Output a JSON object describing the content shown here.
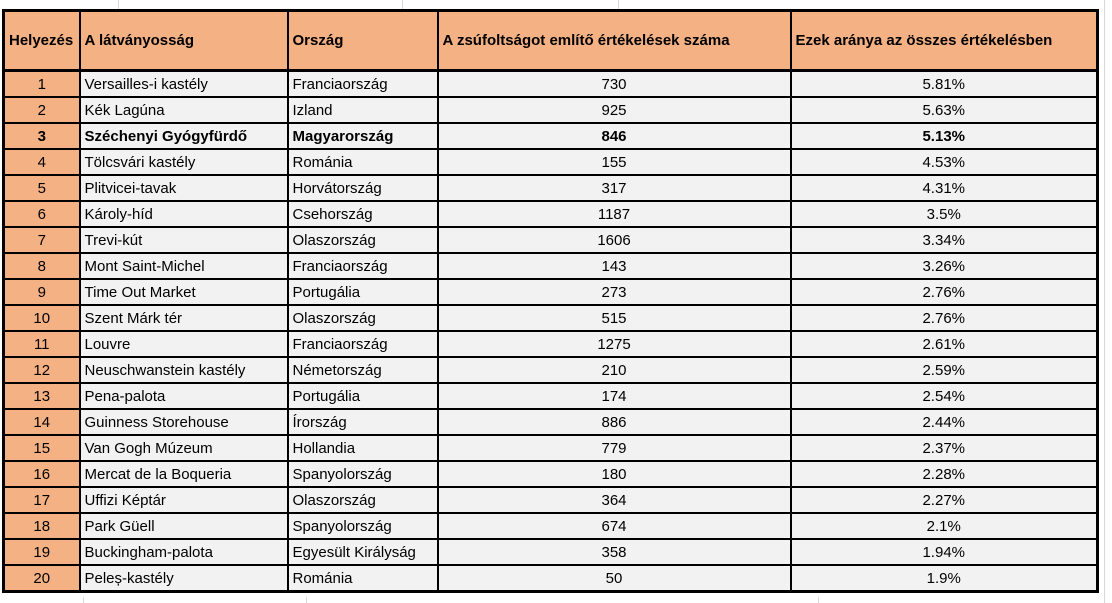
{
  "colors": {
    "header_bg": "#F4B183",
    "rank_col_bg": "#F4B183",
    "row_bg": "#F2F2F2",
    "table_border": "#000000",
    "gridline": "#D8D8D8"
  },
  "table": {
    "columns": [
      {
        "key": "rank",
        "label": "Helyezés"
      },
      {
        "key": "attraction",
        "label": "A látványosság"
      },
      {
        "key": "country",
        "label": "Ország"
      },
      {
        "key": "mentions",
        "label": "A zsúfoltságot említő értékelések száma"
      },
      {
        "key": "share",
        "label": "Ezek aránya az összes értékelésben"
      }
    ],
    "rows": [
      {
        "rank": "1",
        "attraction": "Versailles-i kastély",
        "country": "Franciaország",
        "mentions": "730",
        "share": "5.81%",
        "bold": false
      },
      {
        "rank": "2",
        "attraction": "Kék Lagúna",
        "country": "Izland",
        "mentions": "925",
        "share": "5.63%",
        "bold": false
      },
      {
        "rank": "3",
        "attraction": "Széchenyi Gyógyfürdő",
        "country": "Magyarország",
        "mentions": "846",
        "share": "5.13%",
        "bold": true
      },
      {
        "rank": "4",
        "attraction": "Tölcsvári kastély",
        "country": "Románia",
        "mentions": "155",
        "share": "4.53%",
        "bold": false
      },
      {
        "rank": "5",
        "attraction": "Plitvicei-tavak",
        "country": "Horvátország",
        "mentions": "317",
        "share": "4.31%",
        "bold": false
      },
      {
        "rank": "6",
        "attraction": "Károly-híd",
        "country": "Csehország",
        "mentions": "1187",
        "share": "3.5%",
        "bold": false
      },
      {
        "rank": "7",
        "attraction": "Trevi-kút",
        "country": "Olaszország",
        "mentions": "1606",
        "share": "3.34%",
        "bold": false
      },
      {
        "rank": "8",
        "attraction": "Mont Saint-Michel",
        "country": "Franciaország",
        "mentions": "143",
        "share": "3.26%",
        "bold": false
      },
      {
        "rank": "9",
        "attraction": "Time Out Market",
        "country": "Portugália",
        "mentions": "273",
        "share": "2.76%",
        "bold": false
      },
      {
        "rank": "10",
        "attraction": "Szent Márk tér",
        "country": "Olaszország",
        "mentions": "515",
        "share": "2.76%",
        "bold": false
      },
      {
        "rank": "11",
        "attraction": "Louvre",
        "country": "Franciaország",
        "mentions": "1275",
        "share": "2.61%",
        "bold": false
      },
      {
        "rank": "12",
        "attraction": "Neuschwanstein kastély",
        "country": "Németország",
        "mentions": "210",
        "share": "2.59%",
        "bold": false
      },
      {
        "rank": "13",
        "attraction": "Pena-palota",
        "country": "Portugália",
        "mentions": "174",
        "share": "2.54%",
        "bold": false
      },
      {
        "rank": "14",
        "attraction": "Guinness Storehouse",
        "country": "Írország",
        "mentions": "886",
        "share": "2.44%",
        "bold": false
      },
      {
        "rank": "15",
        "attraction": "Van Gogh Múzeum",
        "country": "Hollandia",
        "mentions": "779",
        "share": "2.37%",
        "bold": false
      },
      {
        "rank": "16",
        "attraction": "Mercat de la Boqueria",
        "country": "Spanyolország",
        "mentions": "180",
        "share": "2.28%",
        "bold": false
      },
      {
        "rank": "17",
        "attraction": "Uffizi Képtár",
        "country": "Olaszország",
        "mentions": "364",
        "share": "2.27%",
        "bold": false
      },
      {
        "rank": "18",
        "attraction": "Park Güell",
        "country": "Spanyolország",
        "mentions": "674",
        "share": "2.1%",
        "bold": false
      },
      {
        "rank": "19",
        "attraction": "Buckingham-palota",
        "country": "Egyesült Királyság",
        "mentions": "358",
        "share": "1.94%",
        "bold": false
      },
      {
        "rank": "20",
        "attraction": "Peleș-kastély",
        "country": "Románia",
        "mentions": "50",
        "share": "1.9%",
        "bold": false
      }
    ]
  },
  "chart_data": {
    "type": "table",
    "title": "",
    "categories": [
      "Versailles-i kastély",
      "Kék Lagúna",
      "Széchenyi Gyógyfürdő",
      "Tölcsvári kastély",
      "Plitvicei-tavak",
      "Károly-híd",
      "Trevi-kút",
      "Mont Saint-Michel",
      "Time Out Market",
      "Szent Márk tér",
      "Louvre",
      "Neuschwanstein kastély",
      "Pena-palota",
      "Guinness Storehouse",
      "Van Gogh Múzeum",
      "Mercat de la Boqueria",
      "Uffizi Képtár",
      "Park Güell",
      "Buckingham-palota",
      "Peleș-kastély"
    ],
    "series": [
      {
        "name": "A zsúfoltságot említő értékelések száma",
        "values": [
          730,
          925,
          846,
          155,
          317,
          1187,
          1606,
          143,
          273,
          515,
          1275,
          210,
          174,
          886,
          779,
          180,
          364,
          674,
          358,
          50
        ]
      },
      {
        "name": "Ezek aránya az összes értékelésben (%)",
        "values": [
          5.81,
          5.63,
          5.13,
          4.53,
          4.31,
          3.5,
          3.34,
          3.26,
          2.76,
          2.76,
          2.61,
          2.59,
          2.54,
          2.44,
          2.37,
          2.28,
          2.27,
          2.1,
          1.94,
          1.9
        ]
      }
    ]
  }
}
